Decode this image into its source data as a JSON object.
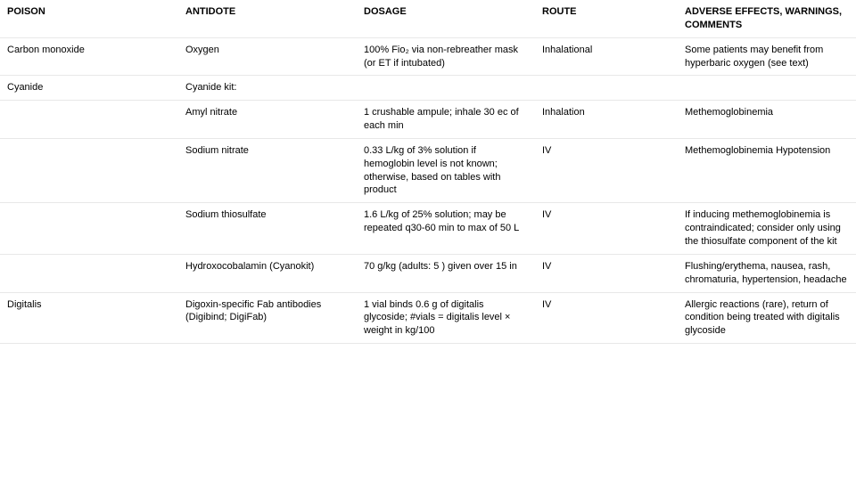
{
  "columns": {
    "poison": "POISON",
    "antidote": "ANTIDOTE",
    "dosage": "DOSAGE",
    "route": "ROUTE",
    "effects": "ADVERSE EFFECTS, WARNINGS, COMMENTS"
  },
  "rows": {
    "r0": {
      "poison": "Carbon monoxide",
      "antidote": "Oxygen",
      "dosage": "100% Fio₂ via non-rebreather mask (or ET if intubated)",
      "route": "Inhalational",
      "effects": "Some patients may benefit from hyperbaric oxygen (see text)"
    },
    "r1": {
      "poison": "Cyanide",
      "antidote": "Cyanide kit:",
      "dosage": "",
      "route": "",
      "effects": ""
    },
    "r2": {
      "poison": "",
      "antidote": "Amyl nitrate",
      "dosage": "1 crushable ampule; inhale 30 ec of each min",
      "route": "Inhalation",
      "effects": "Methemoglobinemia"
    },
    "r3": {
      "poison": "",
      "antidote": "Sodium nitrate",
      "dosage": "0.33 L/kg of 3% solution if hemoglobin level is not known; otherwise, based on tables with product",
      "route": "IV",
      "effects": "Methemoglobinemia Hypotension"
    },
    "r4": {
      "poison": "",
      "antidote": "Sodium thiosulfate",
      "dosage": "1.6 L/kg of 25% solution; may be repeated q30-60 min to max of 50 L",
      "route": "IV",
      "effects": "If inducing methemoglobinemia is contraindicated; consider only using the thiosulfate component of the kit"
    },
    "r5": {
      "poison": "",
      "antidote": "Hydroxocobalamin (Cyanokit)",
      "dosage": "70 g/kg (adults: 5 ) given over 15 in",
      "route": "IV",
      "effects": "Flushing/erythema, nausea, rash, chromaturia, hypertension, headache"
    },
    "r6": {
      "poison": "Digitalis",
      "antidote": "Digoxin-specific Fab antibodies (Digibind; DigiFab)",
      "dosage": "1 vial binds 0.6 g of digitalis glycoside;\n#vials = digitalis level × weight in kg/100",
      "route": "IV",
      "effects": "Allergic reactions (rare), return of condition being treated with digitalis glycoside"
    }
  },
  "col_widths": {
    "poison": "200px",
    "antidote": "200px",
    "dosage": "200px",
    "route": "160px",
    "effects": "200px"
  },
  "border_color": "#e8e8e8",
  "font_size": 11,
  "font_family": "Arial, Helvetica, sans-serif",
  "text_color": "#000000",
  "background_color": "#ffffff"
}
